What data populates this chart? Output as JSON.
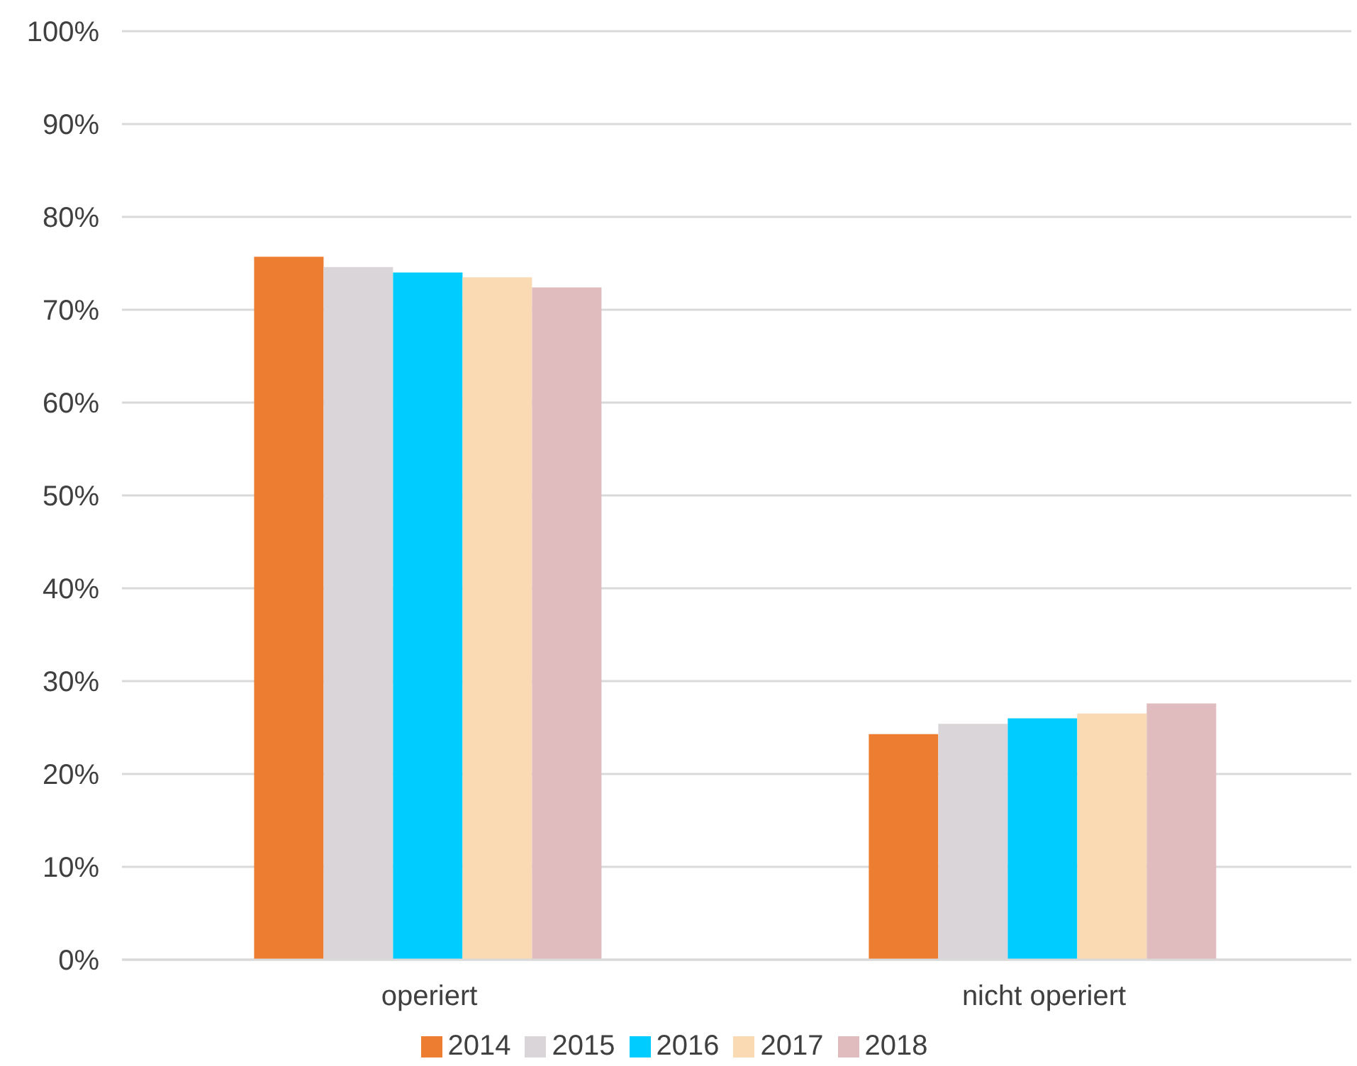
{
  "chart_data": {
    "type": "bar",
    "categories": [
      "operiert",
      "nicht operiert"
    ],
    "series": [
      {
        "name": "2014",
        "color": "#ed7d31",
        "values": [
          75.7,
          24.3
        ]
      },
      {
        "name": "2015",
        "color": "#d9d5d9",
        "values": [
          74.6,
          25.4
        ]
      },
      {
        "name": "2016",
        "color": "#00ccff",
        "values": [
          74.0,
          26.0
        ]
      },
      {
        "name": "2017",
        "color": "#f9dab3",
        "values": [
          73.5,
          26.5
        ]
      },
      {
        "name": "2018",
        "color": "#e0bcbe",
        "values": [
          72.4,
          27.6
        ]
      }
    ],
    "ylim": [
      0,
      100
    ],
    "yticks": [
      {
        "value": 0,
        "label": "0%"
      },
      {
        "value": 10,
        "label": "10%"
      },
      {
        "value": 20,
        "label": "20%"
      },
      {
        "value": 30,
        "label": "30%"
      },
      {
        "value": 40,
        "label": "40%"
      },
      {
        "value": 50,
        "label": "50%"
      },
      {
        "value": 60,
        "label": "60%"
      },
      {
        "value": 70,
        "label": "70%"
      },
      {
        "value": 80,
        "label": "80%"
      },
      {
        "value": 90,
        "label": "90%"
      },
      {
        "value": 100,
        "label": "100%"
      }
    ],
    "grid": "y",
    "legend": "bottom"
  }
}
